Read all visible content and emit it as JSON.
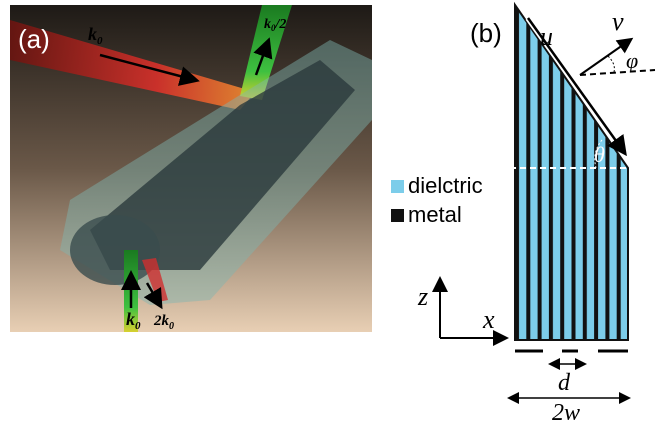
{
  "panel_a": {
    "label": "(a)",
    "beam_labels": [
      [
        "k",
        "0"
      ],
      [
        "k",
        "0",
        "/2"
      ],
      [
        "k",
        "0"
      ],
      [
        "2k",
        "0"
      ]
    ]
  },
  "panel_b": {
    "label": "(b)",
    "u": "u",
    "v": "v",
    "phi": "φ",
    "theta": "θ",
    "legend": [
      "dielctric",
      "metal"
    ],
    "z": "z",
    "x": "x",
    "d": "d",
    "width": "2w"
  }
}
